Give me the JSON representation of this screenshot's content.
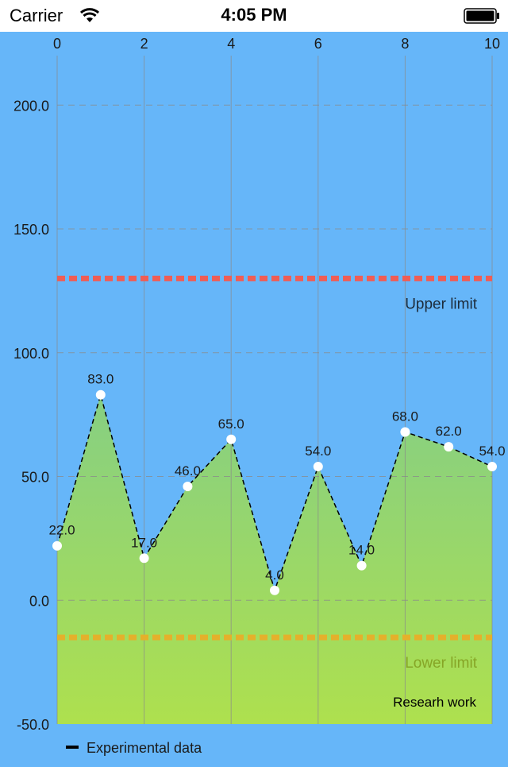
{
  "status_bar": {
    "carrier": "Carrier",
    "time": "4:05 PM",
    "wifi_icon": "wifi-icon",
    "battery_icon": "battery-full-icon"
  },
  "chart_data": {
    "type": "area",
    "x": [
      0,
      1,
      2,
      3,
      4,
      5,
      6,
      7,
      8,
      9,
      10
    ],
    "x_ticks": [
      "0",
      "2",
      "4",
      "6",
      "8",
      "10"
    ],
    "xlim": [
      0,
      10
    ],
    "y_ticks": [
      "200.0",
      "150.0",
      "100.0",
      "50.0",
      "0.0",
      "-50.0"
    ],
    "ylim": [
      -50,
      220
    ],
    "series": [
      {
        "name": "Experimental data",
        "values": [
          22,
          83,
          17,
          46,
          65,
          4,
          54,
          14,
          68,
          62,
          54
        ],
        "data_labels": [
          "22.0",
          "83.0",
          "17.0",
          "46.0",
          "65.0",
          "4.0",
          "54.0",
          "14.0",
          "68.0",
          "62.0",
          "54.0"
        ],
        "line_style": "dashed",
        "line_color": "#000000",
        "fill_gradient": [
          "#86cf83",
          "#aee04e"
        ],
        "marker_color": "#ffffff"
      }
    ],
    "limit_lines": [
      {
        "label": "Upper limit",
        "value": 130,
        "color": "#ef5d55",
        "label_color": "#1c2b3a"
      },
      {
        "label": "Lower limit",
        "value": -15,
        "color": "#e5b02b",
        "label_color": "#86a526"
      }
    ],
    "description": "Researh work",
    "legend": {
      "label": "Experimental data",
      "placement": "bottom-left"
    },
    "grid": {
      "vertical": true,
      "horizontal_dashed": true
    },
    "colors": {
      "background": "#66b6f9",
      "grid": "#8a8a8a"
    }
  }
}
